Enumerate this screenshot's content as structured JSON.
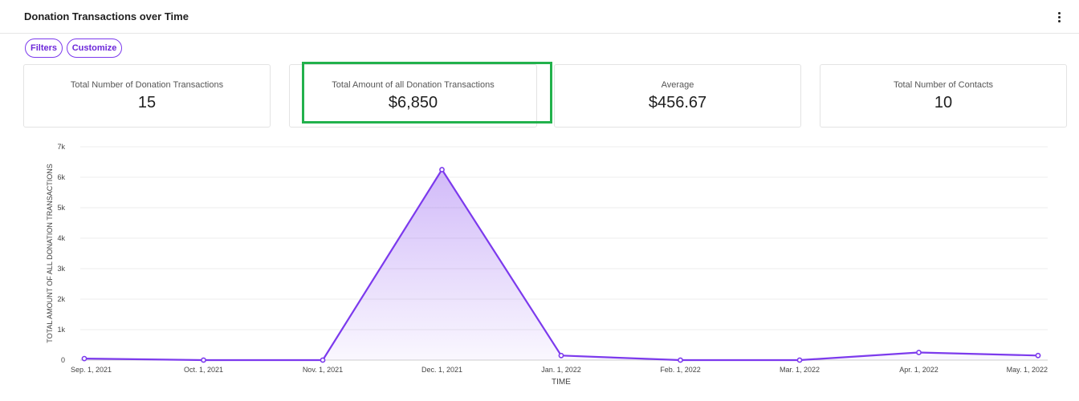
{
  "header": {
    "title": "Donation Transactions over Time"
  },
  "toolbar": {
    "filters_label": "Filters",
    "customize_label": "Customize"
  },
  "cards": [
    {
      "label": "Total Number of Donation Transactions",
      "value": "15"
    },
    {
      "label": "Total Amount of all Donation Transactions",
      "value": "$6,850"
    },
    {
      "label": "Average",
      "value": "$456.67"
    },
    {
      "label": "Total Number of Contacts",
      "value": "10"
    }
  ],
  "colors": {
    "accent": "#7c3aed",
    "highlight": "#22b14c"
  },
  "icons": {
    "menu": "more-vertical-icon"
  },
  "chart_data": {
    "type": "area",
    "x": [
      "Sep. 1, 2021",
      "Oct. 1, 2021",
      "Nov. 1, 2021",
      "Dec. 1, 2021",
      "Jan. 1, 2022",
      "Feb. 1, 2022",
      "Mar. 1, 2022",
      "Apr. 1, 2022",
      "May. 1, 2022"
    ],
    "values": [
      50,
      0,
      0,
      6250,
      150,
      0,
      0,
      250,
      150
    ],
    "xlabel": "TIME",
    "ylabel": "TOTAL AMOUNT OF ALL DONATION TRANSACTIONS",
    "yticks": [
      "0",
      "1k",
      "2k",
      "3k",
      "4k",
      "5k",
      "6k",
      "7k"
    ],
    "ylim": [
      0,
      7000
    ],
    "grid": true,
    "color": "#7c3aed"
  }
}
